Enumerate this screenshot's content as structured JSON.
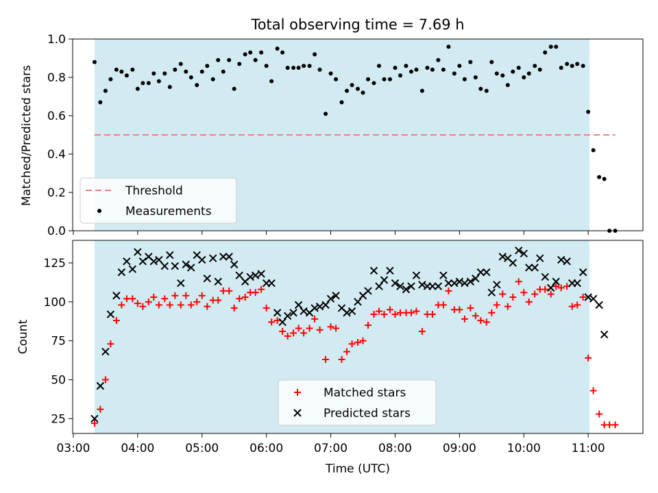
{
  "chart_data": {
    "type": "scatter",
    "title": "Total observing time = 7.69 h",
    "xlabel": "Time (UTC)",
    "x_ticks": [
      "03:00",
      "04:00",
      "05:00",
      "06:00",
      "07:00",
      "08:00",
      "09:00",
      "10:00",
      "11:00"
    ],
    "shaded_interval_hours": [
      3.33,
      11.02
    ],
    "shade_color": "#add8e6",
    "panels": [
      {
        "name": "ratio",
        "ylabel": "Matched/Predicted stars",
        "ylim": [
          0,
          1.0
        ],
        "y_ticks": [
          "0.0",
          "0.2",
          "0.4",
          "0.6",
          "0.8",
          "1.0"
        ],
        "legend": {
          "placement": "lower-left",
          "entries": [
            "Threshold",
            "Measurements"
          ]
        },
        "threshold": {
          "name": "Threshold",
          "value": 0.5,
          "x_range": [
            3.33,
            11.42
          ],
          "color": "#f08080",
          "style": "dashed"
        },
        "series": [
          {
            "name": "Measurements",
            "marker": "dot",
            "color": "#000000",
            "x": [
              3.33,
              3.42,
              3.5,
              3.58,
              3.67,
              3.75,
              3.83,
              3.92,
              4.0,
              4.08,
              4.17,
              4.25,
              4.33,
              4.42,
              4.5,
              4.58,
              4.67,
              4.75,
              4.83,
              4.92,
              5.0,
              5.08,
              5.17,
              5.25,
              5.33,
              5.42,
              5.5,
              5.58,
              5.67,
              5.75,
              5.83,
              5.92,
              6.0,
              6.08,
              6.17,
              6.25,
              6.33,
              6.42,
              6.5,
              6.58,
              6.67,
              6.75,
              6.83,
              6.92,
              7.0,
              7.08,
              7.17,
              7.25,
              7.33,
              7.42,
              7.5,
              7.58,
              7.67,
              7.75,
              7.83,
              7.92,
              8.0,
              8.08,
              8.17,
              8.25,
              8.33,
              8.42,
              8.5,
              8.58,
              8.67,
              8.75,
              8.83,
              8.92,
              9.0,
              9.08,
              9.17,
              9.25,
              9.33,
              9.42,
              9.5,
              9.58,
              9.67,
              9.75,
              9.83,
              9.92,
              10.0,
              10.08,
              10.17,
              10.25,
              10.33,
              10.42,
              10.5,
              10.58,
              10.67,
              10.75,
              10.83,
              10.92,
              11.0,
              11.08,
              11.17,
              11.25,
              11.33,
              11.42
            ],
            "y": [
              0.88,
              0.67,
              0.73,
              0.79,
              0.84,
              0.83,
              0.81,
              0.84,
              0.74,
              0.77,
              0.77,
              0.82,
              0.78,
              0.82,
              0.75,
              0.84,
              0.87,
              0.83,
              0.8,
              0.76,
              0.83,
              0.86,
              0.79,
              0.89,
              0.83,
              0.89,
              0.74,
              0.87,
              0.92,
              0.93,
              0.89,
              0.93,
              0.86,
              0.78,
              0.95,
              0.93,
              0.85,
              0.85,
              0.85,
              0.86,
              0.86,
              0.92,
              0.84,
              0.61,
              0.82,
              0.79,
              0.67,
              0.73,
              0.76,
              0.74,
              0.72,
              0.79,
              0.77,
              0.86,
              0.79,
              0.79,
              0.85,
              0.81,
              0.86,
              0.83,
              0.84,
              0.73,
              0.85,
              0.84,
              0.89,
              0.84,
              0.96,
              0.82,
              0.86,
              0.79,
              0.88,
              0.8,
              0.74,
              0.73,
              0.88,
              0.82,
              0.81,
              0.76,
              0.83,
              0.85,
              0.8,
              0.82,
              0.86,
              0.84,
              0.93,
              0.96,
              0.96,
              0.85,
              0.87,
              0.86,
              0.87,
              0.86,
              0.62,
              0.42,
              0.28,
              0.27,
              0.0,
              0.0
            ]
          }
        ]
      },
      {
        "name": "counts",
        "ylabel": "Count",
        "ylim": [
          15,
          140
        ],
        "y_ticks": [
          "25",
          "50",
          "75",
          "100",
          "125"
        ],
        "legend": {
          "placement": "lower-center",
          "entries": [
            "Matched stars",
            "Predicted stars"
          ]
        },
        "series": [
          {
            "name": "Matched stars",
            "marker": "plus",
            "color": "#ff0000",
            "x": [
              3.33,
              3.42,
              3.5,
              3.58,
              3.67,
              3.75,
              3.83,
              3.92,
              4.0,
              4.08,
              4.17,
              4.25,
              4.33,
              4.42,
              4.5,
              4.58,
              4.67,
              4.75,
              4.83,
              4.92,
              5.0,
              5.08,
              5.17,
              5.25,
              5.33,
              5.42,
              5.5,
              5.58,
              5.67,
              5.75,
              5.83,
              5.92,
              6.0,
              6.08,
              6.17,
              6.25,
              6.33,
              6.42,
              6.5,
              6.58,
              6.67,
              6.75,
              6.83,
              6.92,
              7.0,
              7.08,
              7.17,
              7.25,
              7.33,
              7.42,
              7.5,
              7.58,
              7.67,
              7.75,
              7.83,
              7.92,
              8.0,
              8.08,
              8.17,
              8.25,
              8.33,
              8.42,
              8.5,
              8.58,
              8.67,
              8.75,
              8.83,
              8.92,
              9.0,
              9.08,
              9.17,
              9.25,
              9.33,
              9.42,
              9.5,
              9.58,
              9.67,
              9.75,
              9.83,
              9.92,
              10.0,
              10.08,
              10.17,
              10.25,
              10.33,
              10.42,
              10.5,
              10.58,
              10.67,
              10.75,
              10.83,
              10.92,
              11.0,
              11.08,
              11.17,
              11.25,
              11.33,
              11.42
            ],
            "y": [
              22,
              31,
              50,
              73,
              88,
              98,
              102,
              102,
              99,
              97,
              100,
              103,
              98,
              102,
              98,
              104,
              98,
              104,
              98,
              100,
              104,
              97,
              101,
              101,
              107,
              107,
              96,
              102,
              103,
              106,
              106,
              108,
              96,
              87,
              88,
              81,
              78,
              80,
              83,
              80,
              83,
              89,
              82,
              63,
              84,
              83,
              63,
              68,
              73,
              74,
              75,
              85,
              92,
              94,
              92,
              95,
              92,
              93,
              93,
              93,
              94,
              81,
              92,
              92,
              98,
              98,
              107,
              95,
              95,
              89,
              96,
              91,
              88,
              87,
              93,
              98,
              105,
              97,
              103,
              113,
              106,
              100,
              105,
              108,
              108,
              105,
              110,
              109,
              110,
              97,
              98,
              103,
              64,
              43,
              28,
              21,
              21,
              21
            ]
          },
          {
            "name": "Predicted stars",
            "marker": "x",
            "color": "#000000",
            "x": [
              3.33,
              3.42,
              3.5,
              3.58,
              3.67,
              3.75,
              3.83,
              3.92,
              4.0,
              4.08,
              4.17,
              4.25,
              4.33,
              4.42,
              4.5,
              4.58,
              4.67,
              4.75,
              4.83,
              4.92,
              5.0,
              5.08,
              5.17,
              5.25,
              5.33,
              5.42,
              5.5,
              5.58,
              5.67,
              5.75,
              5.83,
              5.92,
              6.0,
              6.08,
              6.17,
              6.25,
              6.33,
              6.42,
              6.5,
              6.58,
              6.67,
              6.75,
              6.83,
              6.92,
              7.0,
              7.08,
              7.17,
              7.25,
              7.33,
              7.42,
              7.5,
              7.58,
              7.67,
              7.75,
              7.83,
              7.92,
              8.0,
              8.08,
              8.17,
              8.25,
              8.33,
              8.42,
              8.5,
              8.58,
              8.67,
              8.75,
              8.83,
              8.92,
              9.0,
              9.08,
              9.17,
              9.25,
              9.33,
              9.42,
              9.5,
              9.58,
              9.67,
              9.75,
              9.83,
              9.92,
              10.0,
              10.08,
              10.17,
              10.25,
              10.33,
              10.42,
              10.5,
              10.58,
              10.67,
              10.75,
              10.83,
              10.92,
              11.0,
              11.08,
              11.17,
              11.25
            ],
            "y": [
              25,
              46,
              68,
              92,
              104,
              119,
              126,
              121,
              132,
              126,
              129,
              126,
              127,
              123,
              130,
              123,
              112,
              124,
              122,
              130,
              127,
              115,
              128,
              113,
              129,
              129,
              124,
              117,
              113,
              116,
              117,
              118,
              112,
              112,
              93,
              87,
              91,
              93,
              98,
              94,
              93,
              96,
              97,
              98,
              102,
              104,
              96,
              93,
              94,
              100,
              104,
              107,
              120,
              110,
              114,
              120,
              112,
              110,
              108,
              110,
              117,
              111,
              110,
              110,
              110,
              117,
              112,
              112,
              113,
              112,
              113,
              115,
              119,
              119,
              106,
              111,
              129,
              128,
              125,
              133,
              131,
              122,
              122,
              128,
              116,
              109,
              113,
              127,
              126,
              112,
              112,
              119,
              103,
              102,
              98,
              79
            ]
          }
        ]
      }
    ]
  }
}
